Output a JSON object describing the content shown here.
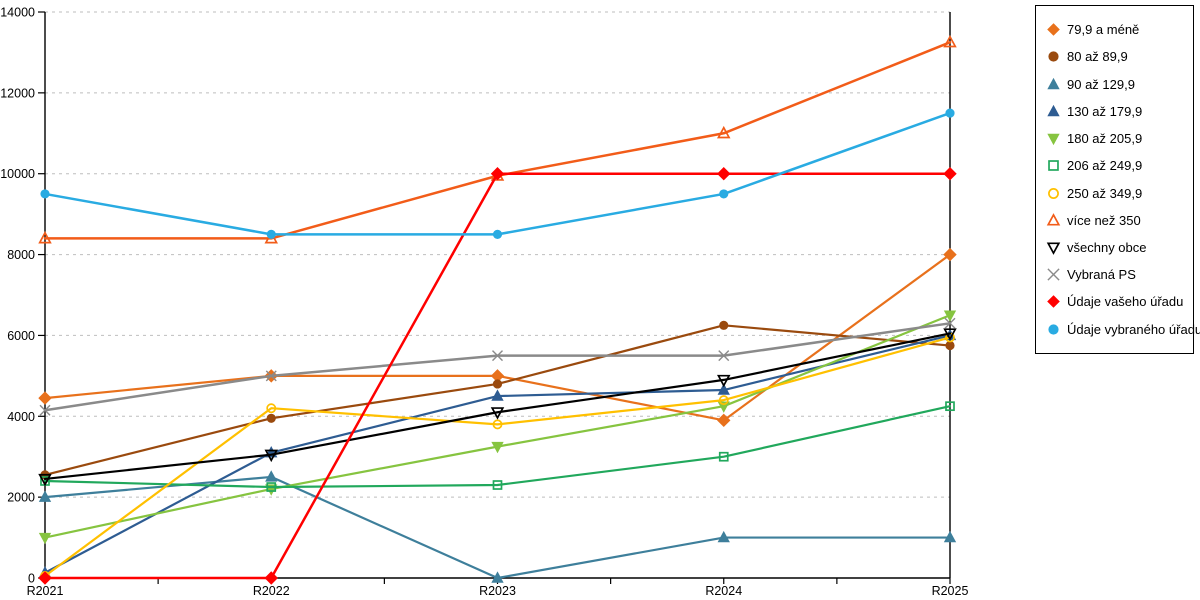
{
  "chart_data": {
    "type": "line",
    "categories": [
      "R2021",
      "R2022",
      "R2023",
      "R2024",
      "R2025"
    ],
    "series": [
      {
        "name": "79,9 a méně",
        "marker": "diamond",
        "style": "filled",
        "color": "#E8711C",
        "width": 2.2,
        "values": [
          4450,
          5000,
          5000,
          3900,
          8000
        ]
      },
      {
        "name": "80 až 89,9",
        "marker": "circle",
        "style": "filled",
        "color": "#9A4A0E",
        "width": 2.2,
        "values": [
          2550,
          3950,
          4800,
          6250,
          5750
        ]
      },
      {
        "name": "90 až 129,9",
        "marker": "triangle-up",
        "style": "filled",
        "color": "#3E7F9B",
        "width": 2.2,
        "values": [
          2000,
          2500,
          0,
          1000,
          1000
        ]
      },
      {
        "name": "130 až 179,9",
        "marker": "triangle-up",
        "style": "filled",
        "color": "#2E5C92",
        "width": 2.2,
        "values": [
          130,
          3100,
          4500,
          4650,
          6000
        ]
      },
      {
        "name": "180 až 205,9",
        "marker": "triangle-down",
        "style": "filled",
        "color": "#86C440",
        "width": 2.2,
        "values": [
          1000,
          2200,
          3250,
          4250,
          6500
        ]
      },
      {
        "name": "206 až 249,9",
        "marker": "square",
        "style": "open",
        "color": "#21A85C",
        "width": 2.2,
        "values": [
          2400,
          2250,
          2300,
          3000,
          4250
        ]
      },
      {
        "name": "250 až 349,9",
        "marker": "circle",
        "style": "open",
        "color": "#FFC000",
        "width": 2.2,
        "values": [
          50,
          4200,
          3800,
          4400,
          5950
        ]
      },
      {
        "name": "více než 350",
        "marker": "triangle-up",
        "style": "open",
        "color": "#F25C19",
        "width": 2.5,
        "values": [
          8400,
          8400,
          9950,
          11000,
          13250
        ]
      },
      {
        "name": "všechny obce",
        "marker": "triangle-down",
        "style": "open",
        "color": "#000000",
        "width": 2.2,
        "values": [
          2450,
          3050,
          4100,
          4900,
          6050
        ]
      },
      {
        "name": "Vybraná PS",
        "marker": "x",
        "style": "open",
        "color": "#8A8A8A",
        "width": 2.5,
        "values": [
          4150,
          5000,
          5500,
          5500,
          6300
        ]
      },
      {
        "name": "Údaje vašeho úřadu",
        "marker": "diamond",
        "style": "filled",
        "color": "#FF0000",
        "width": 2.5,
        "values": [
          0,
          0,
          10000,
          10000,
          10000
        ]
      },
      {
        "name": "Údaje vybraného úřadu",
        "marker": "circle",
        "style": "filled",
        "color": "#29ABE2",
        "width": 2.5,
        "values": [
          9500,
          8500,
          8500,
          9500,
          11500
        ]
      }
    ],
    "ylim": [
      0,
      14000
    ],
    "ytick_interval": 2000,
    "ytick_labels": [
      "0",
      "2000",
      "4000",
      "6000",
      "8000",
      "10000",
      "12000",
      "14000"
    ],
    "grid": "horizontal-dashed",
    "gridline_color": "#BEBEBE",
    "axis_color": "#000000",
    "legend_position": "right",
    "title": "",
    "xlabel": "",
    "ylabel": ""
  }
}
